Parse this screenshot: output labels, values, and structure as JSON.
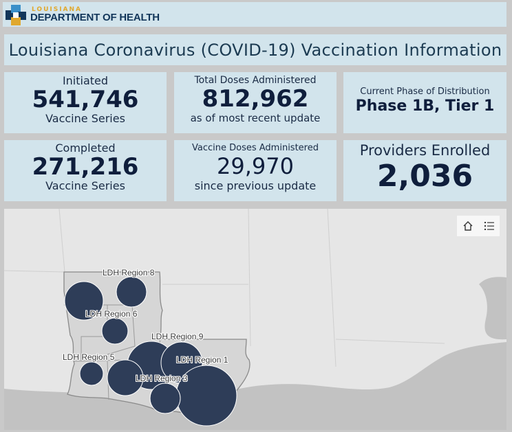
{
  "header": {
    "logo_top_text": "LOUISIANA",
    "logo_main_text": "DEPARTMENT OF HEALTH"
  },
  "title": "Louisiana Coronavirus (COVID-19) Vaccination Information",
  "cards": {
    "initiated": {
      "top": "Initiated",
      "value": "541,746",
      "bottom": "Vaccine Series"
    },
    "total_doses": {
      "top": "Total Doses Administered",
      "value": "812,962",
      "bottom": "as of most recent update"
    },
    "phase": {
      "top": "Current Phase of Distribution",
      "value": "Phase 1B, Tier 1"
    },
    "completed": {
      "top": "Completed",
      "value": "271,216",
      "bottom": "Vaccine Series"
    },
    "vaccine_doses": {
      "top": "Vaccine Doses Administered",
      "value": "29,970",
      "bottom": "since previous update"
    },
    "providers": {
      "top": "Providers Enrolled",
      "value": "2,036"
    }
  },
  "map": {
    "labels": {
      "r8": "LDH Region 8",
      "r6": "LDH Region 6",
      "r9": "LDH Region 9",
      "r5": "LDH Region 5",
      "r1": "LDH Region 1",
      "r3": "LDH Region 3"
    },
    "tools": [
      "home-icon",
      "list-icon"
    ],
    "bubble_color": "#2e3d58"
  },
  "colors": {
    "card_bg": "#d2e4ec",
    "value_text": "#0f1e3c",
    "logo_blue": "#12365a",
    "logo_gold": "#e0a82e"
  }
}
